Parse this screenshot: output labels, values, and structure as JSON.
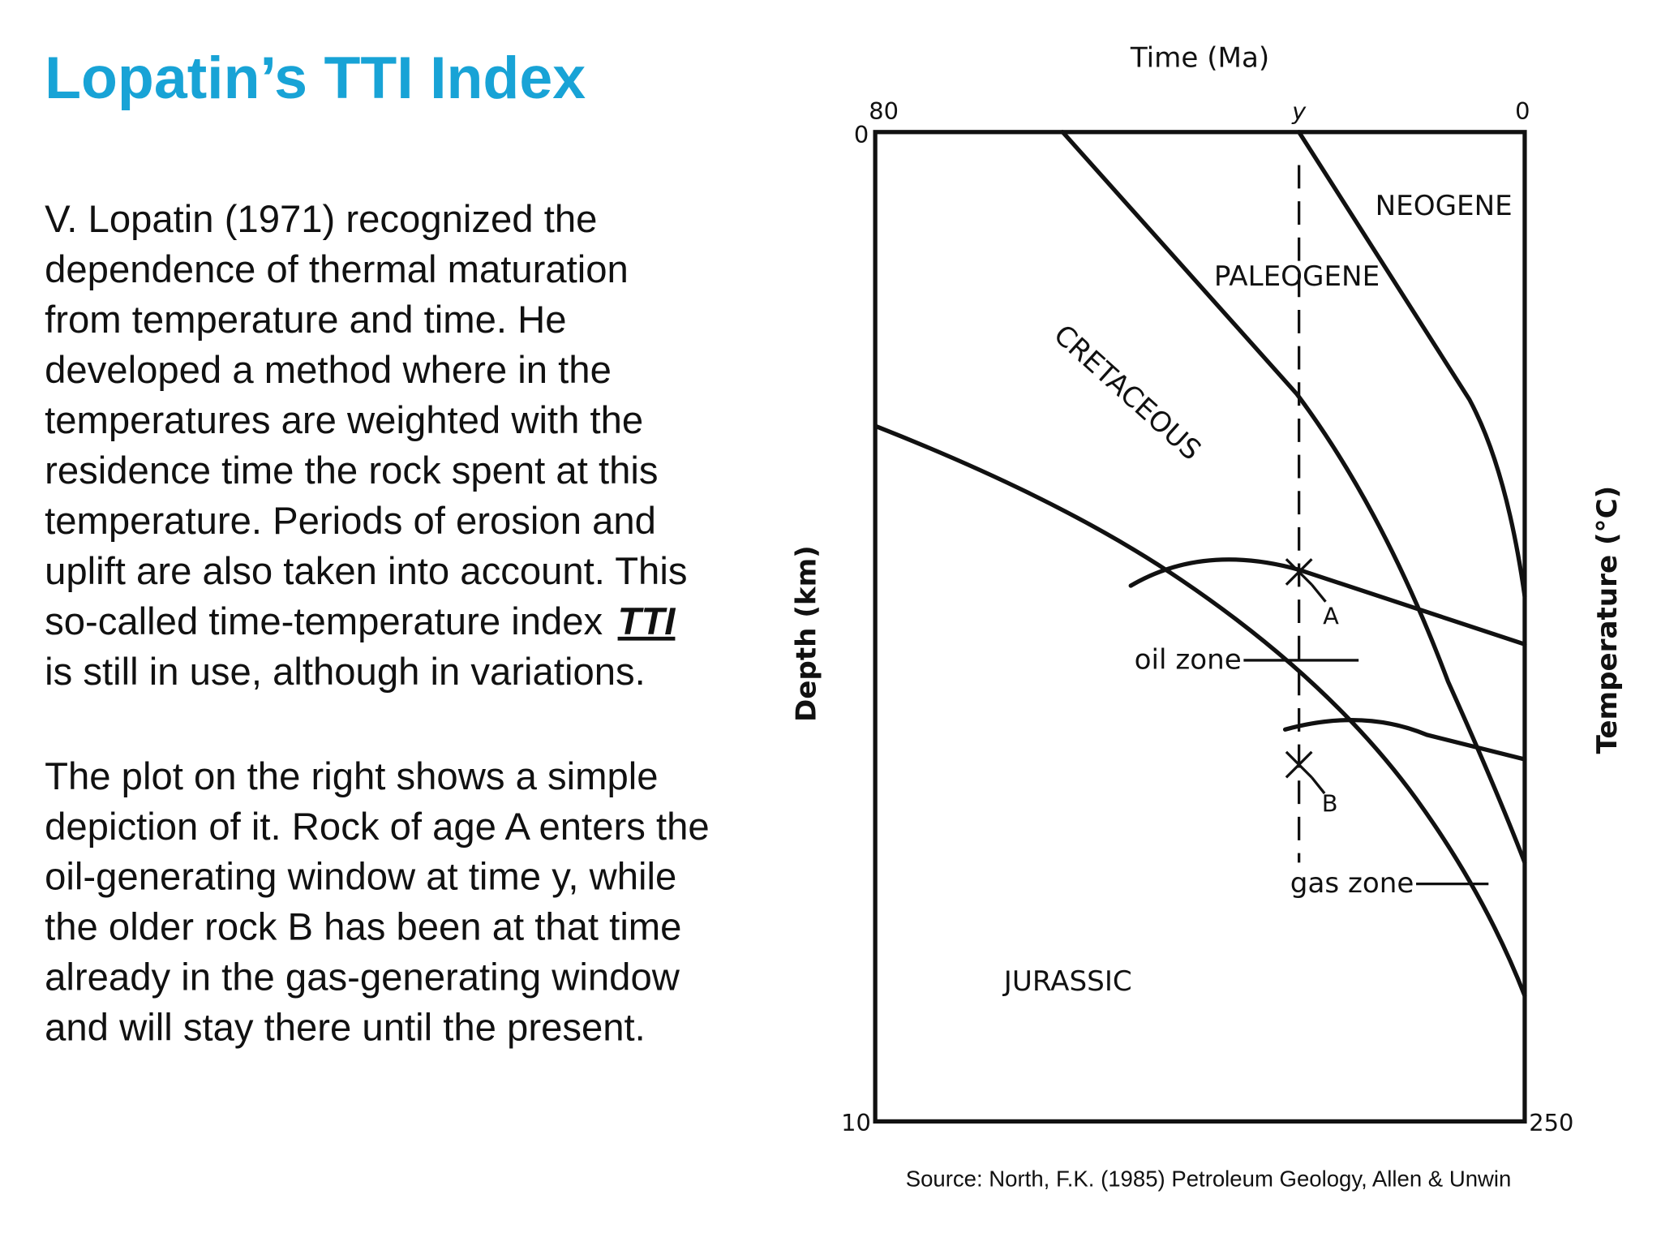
{
  "header": {
    "title": "Lopatin’s TTI Index"
  },
  "paragraph1": {
    "lines": [
      "V. Lopatin (1971) recognized the",
      "dependence of thermal maturation",
      "from temperature and time. He",
      "developed a method where in the",
      "temperatures are weighted with the",
      "residence time the rock spent at this",
      "temperature. Periods of erosion and",
      "uplift are also taken into account. This",
      "so-called time-temperature index",
      "is still in use, although in variations."
    ],
    "emphasis": "TTI"
  },
  "paragraph2": {
    "lines": [
      "The plot on the right shows a simple",
      "depiction of it. Rock of age A enters the",
      "oil-generating window at time y, while",
      "the older rock B has been at that time",
      "already in the gas-generating window",
      "and will stay there until the present."
    ]
  },
  "figure": {
    "top_axis_title": "Time (Ma)",
    "top_left": "80",
    "top_mid": "y",
    "top_right": "0",
    "left_top": "0",
    "left_bottom": "10",
    "right_bottom": "250",
    "left_axis_title": "Depth (km)",
    "right_axis_title": "Temperature (°C)",
    "labels": {
      "neogene": "NEOGENE",
      "paleogene": "PALEOGENE",
      "cretaceous": "CRETACEOUS",
      "jurassic": "JURASSIC",
      "oil_zone": "oil zone",
      "gas_zone": "gas zone",
      "a": "A",
      "b": "B"
    },
    "source": "Source: North, F.K. (1985) Petroleum Geology, Allen & Unwin"
  }
}
